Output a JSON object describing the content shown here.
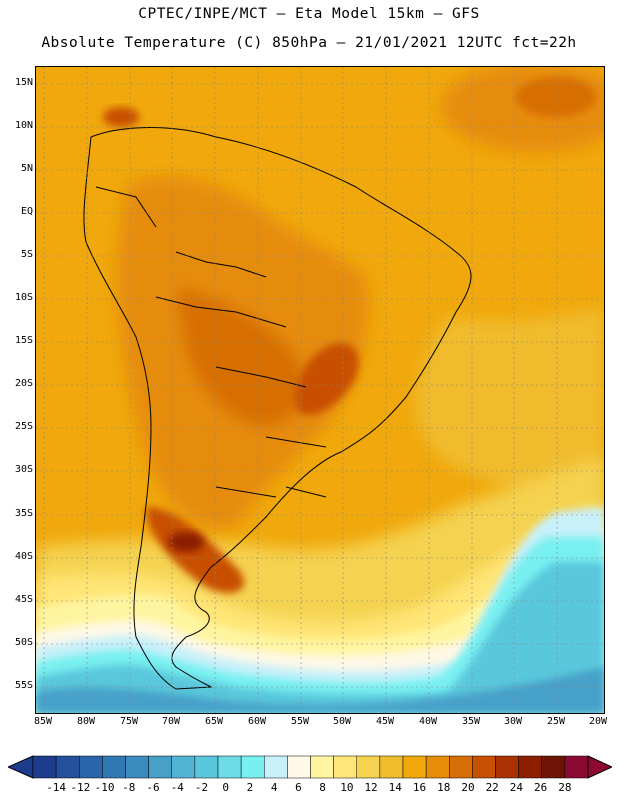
{
  "title_line1": "CPTEC/INPE/MCT –  Eta Model 15km – GFS",
  "title_line2": "Absolute Temperature (C) 850hPa – 21/01/2021 12UTC fct=22h",
  "lat_labels": [
    "15N",
    "10N",
    "5N",
    "EQ",
    "5S",
    "10S",
    "15S",
    "20S",
    "25S",
    "30S",
    "35S",
    "40S",
    "45S",
    "50S",
    "55S"
  ],
  "lon_labels": [
    "85W",
    "80W",
    "75W",
    "70W",
    "65W",
    "60W",
    "55W",
    "50W",
    "45W",
    "40W",
    "35W",
    "30W",
    "25W",
    "20W"
  ],
  "colorbar": {
    "labels": [
      "-14",
      "-12",
      "-10",
      "-8",
      "-6",
      "-4",
      "-2",
      "0",
      "2",
      "4",
      "6",
      "8",
      "10",
      "12",
      "14",
      "16",
      "18",
      "20",
      "22",
      "24",
      "26",
      "28"
    ],
    "colors": [
      "#1e3c8c",
      "#23509b",
      "#2a64aa",
      "#3078b4",
      "#3a8cbe",
      "#46a0c8",
      "#50b4d2",
      "#5ac8dc",
      "#6edce6",
      "#78f0f0",
      "#c8f0fa",
      "#fff8e6",
      "#fff5a0",
      "#ffe678",
      "#f5d250",
      "#f0bc2d",
      "#f0a80c",
      "#e68c08",
      "#d76e05",
      "#c85003",
      "#aa3202",
      "#8c1e02",
      "#6e1405",
      "#8c0a32"
    ],
    "low_arrow_color": "#1e3c8c",
    "high_arrow_color": "#8c0a32"
  },
  "map_fields": {
    "ocean_warm_color": "#f0a80c",
    "coast_line_color": "#000000",
    "grid_line_color": "#888888"
  }
}
